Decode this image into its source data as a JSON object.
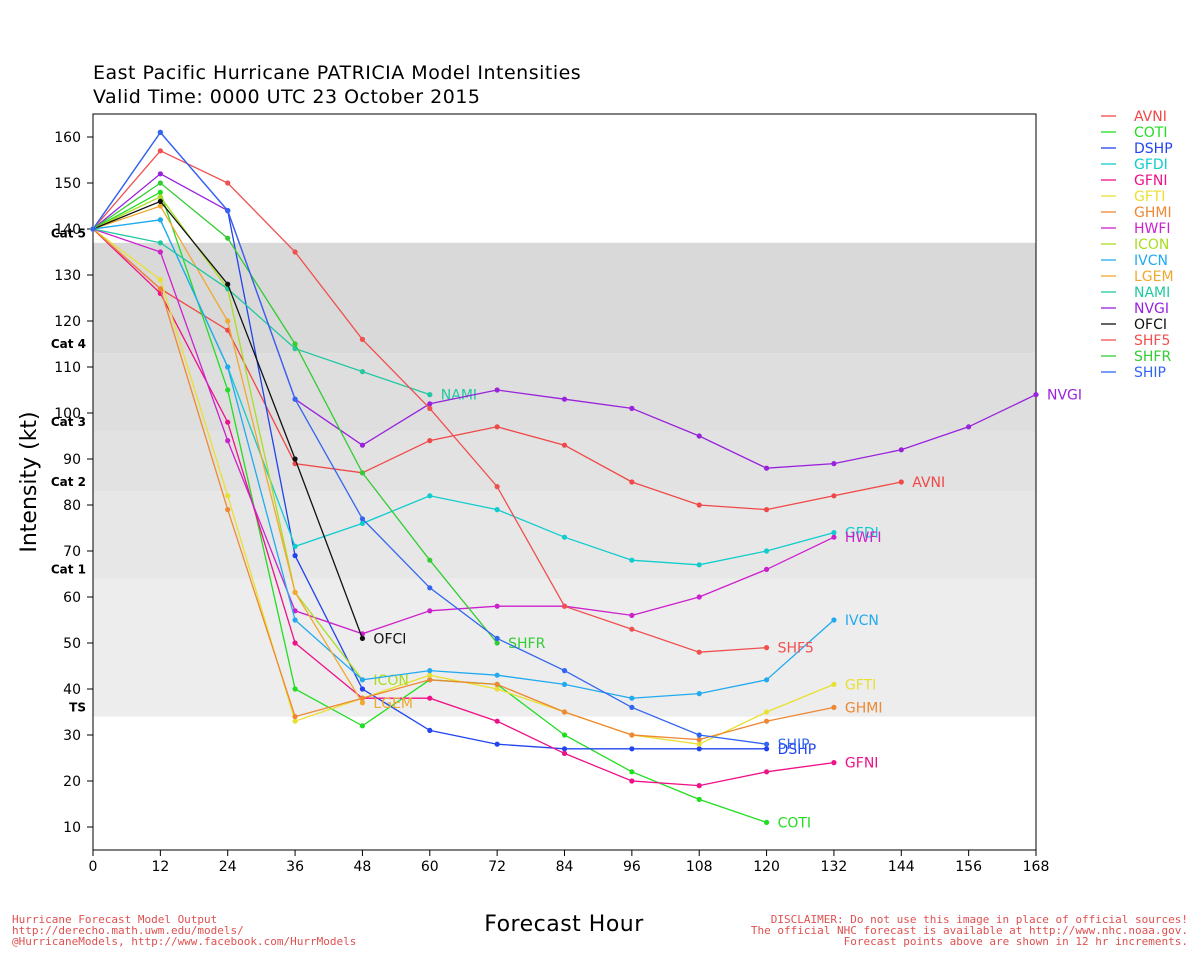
{
  "chart_data": {
    "type": "line",
    "title": "East Pacific Hurricane PATRICIA Model Intensities",
    "subtitle": "Valid Time: 0000 UTC 23 October 2015",
    "xlabel": "Forecast Hour",
    "ylabel": "Intensity (kt)",
    "xlim": [
      0,
      168
    ],
    "ylim": [
      5,
      165
    ],
    "x_ticks": [
      0,
      12,
      24,
      36,
      48,
      60,
      72,
      84,
      96,
      108,
      120,
      132,
      144,
      156,
      168
    ],
    "y_ticks": [
      10,
      20,
      30,
      40,
      50,
      60,
      70,
      80,
      90,
      100,
      110,
      120,
      130,
      140,
      150,
      160
    ],
    "legend_position": "right",
    "categories": [
      {
        "label": "TS",
        "lower": 34,
        "upper": 64,
        "color": "#ededed",
        "label_y": 36
      },
      {
        "label": "Cat 1",
        "lower": 64,
        "upper": 83,
        "color": "#e7e7e7",
        "label_y": 66
      },
      {
        "label": "Cat 2",
        "lower": 83,
        "upper": 96,
        "color": "#e2e2e2",
        "label_y": 85
      },
      {
        "label": "Cat 3",
        "lower": 96,
        "upper": 113,
        "color": "#dedede",
        "label_y": 98
      },
      {
        "label": "Cat 4",
        "lower": 113,
        "upper": 137,
        "color": "#d9d9d9",
        "label_y": 115
      },
      {
        "label": "Cat 5",
        "lower": 137,
        "upper": 137,
        "color": "#ffffff",
        "label_y": 139
      }
    ],
    "series": [
      {
        "name": "AVNI",
        "color": "#f04848",
        "label": "AVNI",
        "x": [
          0,
          12,
          24,
          36,
          48,
          60,
          72,
          84,
          96,
          108,
          120,
          132,
          144
        ],
        "y": [
          140,
          127,
          118,
          89,
          87,
          94,
          97,
          93,
          85,
          80,
          79,
          82,
          85
        ]
      },
      {
        "name": "COTI",
        "color": "#22dd22",
        "label": "COTI",
        "x": [
          0,
          12,
          24,
          36,
          48,
          60,
          72,
          84,
          96,
          108,
          120
        ],
        "y": [
          140,
          148,
          105,
          40,
          32,
          42,
          41,
          30,
          22,
          16,
          11
        ]
      },
      {
        "name": "DSHP",
        "color": "#2244ee",
        "label": "DSHP",
        "x": [
          0,
          12,
          24,
          36,
          48,
          60,
          72,
          84,
          96,
          108,
          120
        ],
        "y": [
          140,
          161,
          144,
          69,
          40,
          31,
          28,
          27,
          27,
          27,
          27
        ]
      },
      {
        "name": "GFDI",
        "color": "#11cccc",
        "label": "GFDI",
        "x": [
          0,
          12,
          24,
          36,
          48,
          60,
          72,
          84,
          96,
          108,
          120,
          132
        ],
        "y": [
          140,
          142,
          110,
          71,
          76,
          82,
          79,
          73,
          68,
          67,
          70,
          74
        ]
      },
      {
        "name": "GFNI",
        "color": "#ee1188",
        "label": "GFNI",
        "x": [
          0,
          12,
          24,
          36,
          48,
          60,
          72,
          84,
          96,
          108,
          120,
          132
        ],
        "y": [
          140,
          126,
          98,
          50,
          38,
          38,
          33,
          26,
          20,
          19,
          22,
          24
        ]
      },
      {
        "name": "GFTI",
        "color": "#e8e033",
        "label": "GFTI",
        "x": [
          0,
          12,
          24,
          36,
          48,
          60,
          72,
          84,
          96,
          108,
          120,
          132
        ],
        "y": [
          140,
          129,
          82,
          33,
          38,
          43,
          40,
          35,
          30,
          28,
          35,
          41
        ]
      },
      {
        "name": "GHMI",
        "color": "#ee8833",
        "label": "GHMI",
        "x": [
          0,
          12,
          24,
          36,
          48,
          60,
          72,
          84,
          96,
          108,
          120,
          132
        ],
        "y": [
          140,
          127,
          79,
          34,
          38,
          42,
          41,
          35,
          30,
          29,
          33,
          36
        ]
      },
      {
        "name": "HWFI",
        "color": "#cc22cc",
        "label": "HWFI",
        "x": [
          0,
          12,
          24,
          36,
          48,
          60,
          72,
          84,
          96,
          108,
          120,
          132
        ],
        "y": [
          140,
          135,
          94,
          57,
          52,
          57,
          58,
          58,
          56,
          60,
          66,
          73
        ]
      },
      {
        "name": "ICON",
        "color": "#aadd22",
        "label": "ICON",
        "x": [
          0,
          12,
          24,
          36,
          48
        ],
        "y": [
          140,
          147,
          127,
          61,
          42
        ]
      },
      {
        "name": "IVCN",
        "color": "#22aaee",
        "label": "IVCN",
        "x": [
          0,
          12,
          24,
          36,
          48,
          60,
          72,
          84,
          96,
          108,
          120,
          132
        ],
        "y": [
          140,
          142,
          110,
          55,
          42,
          44,
          43,
          41,
          38,
          39,
          42,
          55
        ]
      },
      {
        "name": "LGEM",
        "color": "#f0a830",
        "label": "LGEM",
        "x": [
          0,
          12,
          24,
          36,
          48
        ],
        "y": [
          140,
          145,
          120,
          61,
          37
        ]
      },
      {
        "name": "NAMI",
        "color": "#22c8a0",
        "label": "NAMI",
        "x": [
          0,
          12,
          24,
          36,
          48,
          60
        ],
        "y": [
          140,
          137,
          127,
          114,
          109,
          104
        ]
      },
      {
        "name": "NVGI",
        "color": "#9922dd",
        "label": "NVGI",
        "x": [
          0,
          12,
          24,
          36,
          48,
          60,
          72,
          84,
          96,
          108,
          120,
          132,
          144,
          156,
          168
        ],
        "y": [
          140,
          152,
          144,
          103,
          93,
          102,
          105,
          103,
          101,
          95,
          88,
          89,
          92,
          97,
          104
        ]
      },
      {
        "name": "OFCI",
        "color": "#111111",
        "label": "OFCI",
        "x": [
          0,
          12,
          24,
          36,
          48
        ],
        "y": [
          140,
          146,
          128,
          90,
          51
        ]
      },
      {
        "name": "SHF5",
        "color": "#f05050",
        "label": "SHF5",
        "x": [
          0,
          12,
          24,
          36,
          48,
          60,
          72,
          84,
          96,
          108,
          120
        ],
        "y": [
          140,
          157,
          150,
          135,
          116,
          101,
          84,
          58,
          53,
          48,
          49
        ]
      },
      {
        "name": "SHFR",
        "color": "#33cc33",
        "label": "SHFR",
        "x": [
          0,
          12,
          24,
          36,
          48,
          60,
          72
        ],
        "y": [
          140,
          150,
          138,
          115,
          87,
          68,
          50
        ]
      },
      {
        "name": "SHIP",
        "color": "#3366f0",
        "label": "SHIP",
        "x": [
          0,
          12,
          24,
          36,
          48,
          60,
          72,
          84,
          96,
          108,
          120
        ],
        "y": [
          140,
          161,
          144,
          103,
          77,
          62,
          51,
          44,
          36,
          30,
          28
        ]
      }
    ]
  },
  "footer": {
    "left": "Hurricane Forecast Model Output\nhttp://derecho.math.uwm.edu/models/\n@HurricaneModels, http://www.facebook.com/HurrModels",
    "right": "DISCLAIMER: Do not use this image in place of official sources!\nThe official NHC forecast is available at http://www.nhc.noaa.gov.\nForecast points above are shown in 12 hr increments."
  }
}
